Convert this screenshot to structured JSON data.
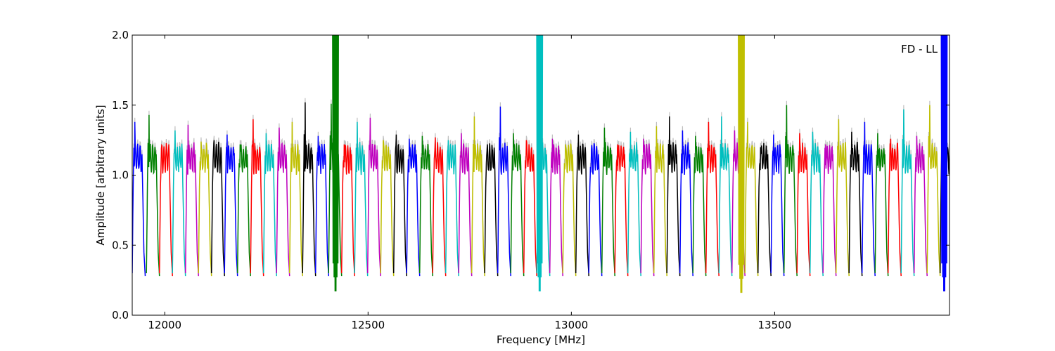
{
  "chart_data": {
    "type": "line",
    "title": "",
    "xlabel": "Frequency [MHz]",
    "ylabel": "Amplitude [arbitrary units]",
    "annotation": "FD - LL",
    "xlim": [
      11920,
      13930
    ],
    "ylim": [
      0.0,
      2.0
    ],
    "xticks": [
      12000,
      12500,
      13000,
      13500
    ],
    "xtick_labels": [
      "12000",
      "12500",
      "13000",
      "13500"
    ],
    "yticks": [
      0.0,
      0.5,
      1.0,
      1.5,
      2.0
    ],
    "ytick_labels": [
      "0.0",
      "0.5",
      "1.0",
      "1.5",
      "2.0"
    ],
    "grid": false,
    "legend": "none",
    "band_width_mhz": 32,
    "color_cycle": [
      "#0000ff",
      "#008000",
      "#ff0000",
      "#00bfbf",
      "#bf00bf",
      "#bfbf00",
      "#000000"
    ],
    "background_trace_color": "#c0c0c0",
    "band_starts": [
      11920,
      11955,
      11987,
      12019,
      12051,
      12083,
      12115,
      12147,
      12179,
      12211,
      12243,
      12275,
      12307,
      12339,
      12371,
      12403,
      12435,
      12467,
      12499,
      12531,
      12563,
      12595,
      12627,
      12659,
      12691,
      12723,
      12755,
      12787,
      12819,
      12851,
      12883,
      12915,
      12947,
      12979,
      13011,
      13043,
      13075,
      13107,
      13139,
      13171,
      13203,
      13235,
      13267,
      13299,
      13331,
      13363,
      13395,
      13427,
      13459,
      13491,
      13523,
      13555,
      13587,
      13619,
      13651,
      13683,
      13715,
      13747,
      13779,
      13811,
      13843,
      13875,
      13907
    ],
    "band_peaks": [
      1.38,
      1.43,
      1.21,
      1.32,
      1.36,
      1.24,
      1.25,
      1.29,
      1.22,
      1.4,
      1.3,
      1.34,
      1.38,
      1.52,
      1.28,
      1.51,
      1.22,
      1.38,
      1.41,
      1.25,
      1.29,
      1.26,
      1.28,
      1.27,
      1.25,
      1.3,
      1.42,
      1.22,
      1.49,
      1.3,
      1.25,
      1.43,
      1.26,
      1.22,
      1.29,
      1.18,
      1.34,
      1.22,
      1.31,
      1.26,
      1.35,
      1.42,
      1.32,
      1.28,
      1.38,
      1.42,
      1.32,
      1.38,
      1.2,
      1.29,
      1.5,
      1.3,
      1.31,
      1.22,
      1.4,
      1.31,
      1.38,
      1.3,
      1.26,
      1.47,
      1.28,
      1.5,
      1.5
    ],
    "deep_features": [
      {
        "x": 12420,
        "min": 0.12,
        "max": 2.0,
        "color": "#008000"
      },
      {
        "x": 12922,
        "min": 0.12,
        "max": 2.0,
        "color": "#00bfbf"
      },
      {
        "x": 13418,
        "min": 0.11,
        "max": 2.0,
        "color": "#bfbf00"
      },
      {
        "x": 13917,
        "min": 0.12,
        "max": 2.0,
        "color": "#0000ff"
      }
    ]
  }
}
